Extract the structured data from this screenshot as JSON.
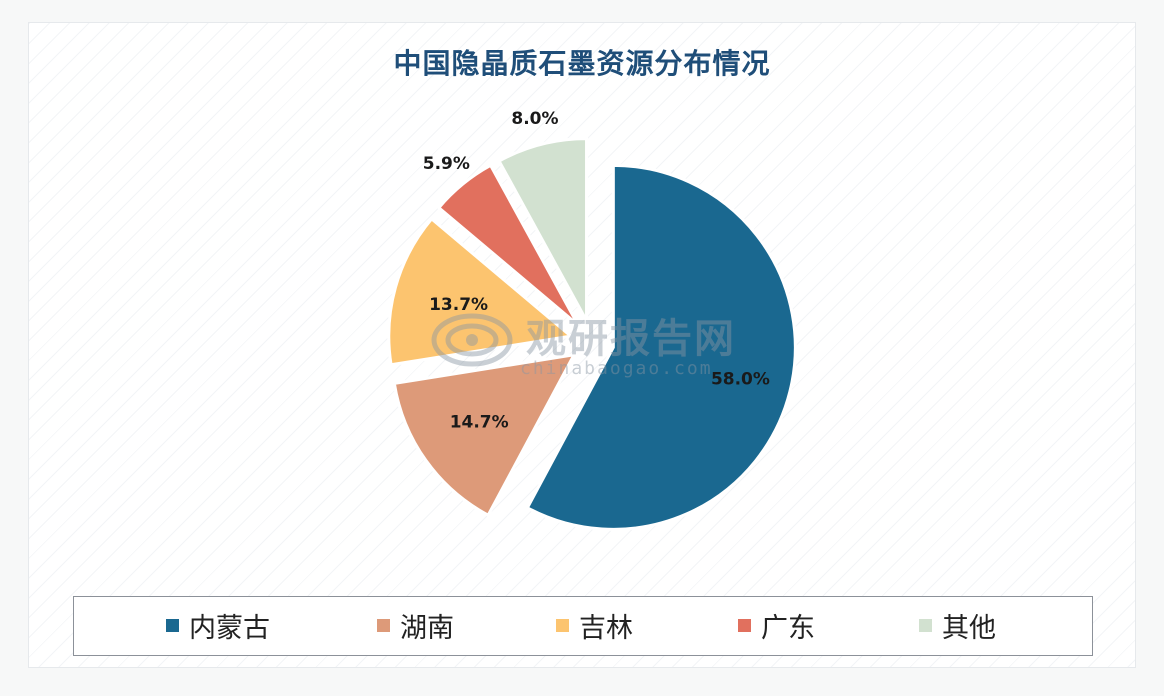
{
  "chart_data": {
    "type": "pie",
    "title": "中国隐晶质石墨资源分布情况",
    "slices": [
      {
        "label": "内蒙古",
        "value": 58.0,
        "display": "58.0%",
        "color": "#1a6890"
      },
      {
        "label": "湖南",
        "value": 14.7,
        "display": "14.7%",
        "color": "#dd9a79"
      },
      {
        "label": "吉林",
        "value": 13.7,
        "display": "13.7%",
        "color": "#fcc46f"
      },
      {
        "label": "广东",
        "value": 5.9,
        "display": "5.9%",
        "color": "#e1705e"
      },
      {
        "label": "其他",
        "value": 8.0,
        "display": "8.0%",
        "color": "#d2e1d0"
      }
    ],
    "legend_position": "bottom",
    "exploded": true
  },
  "watermark": {
    "brand": "观研报告网",
    "url": "chinabaogao.com"
  }
}
